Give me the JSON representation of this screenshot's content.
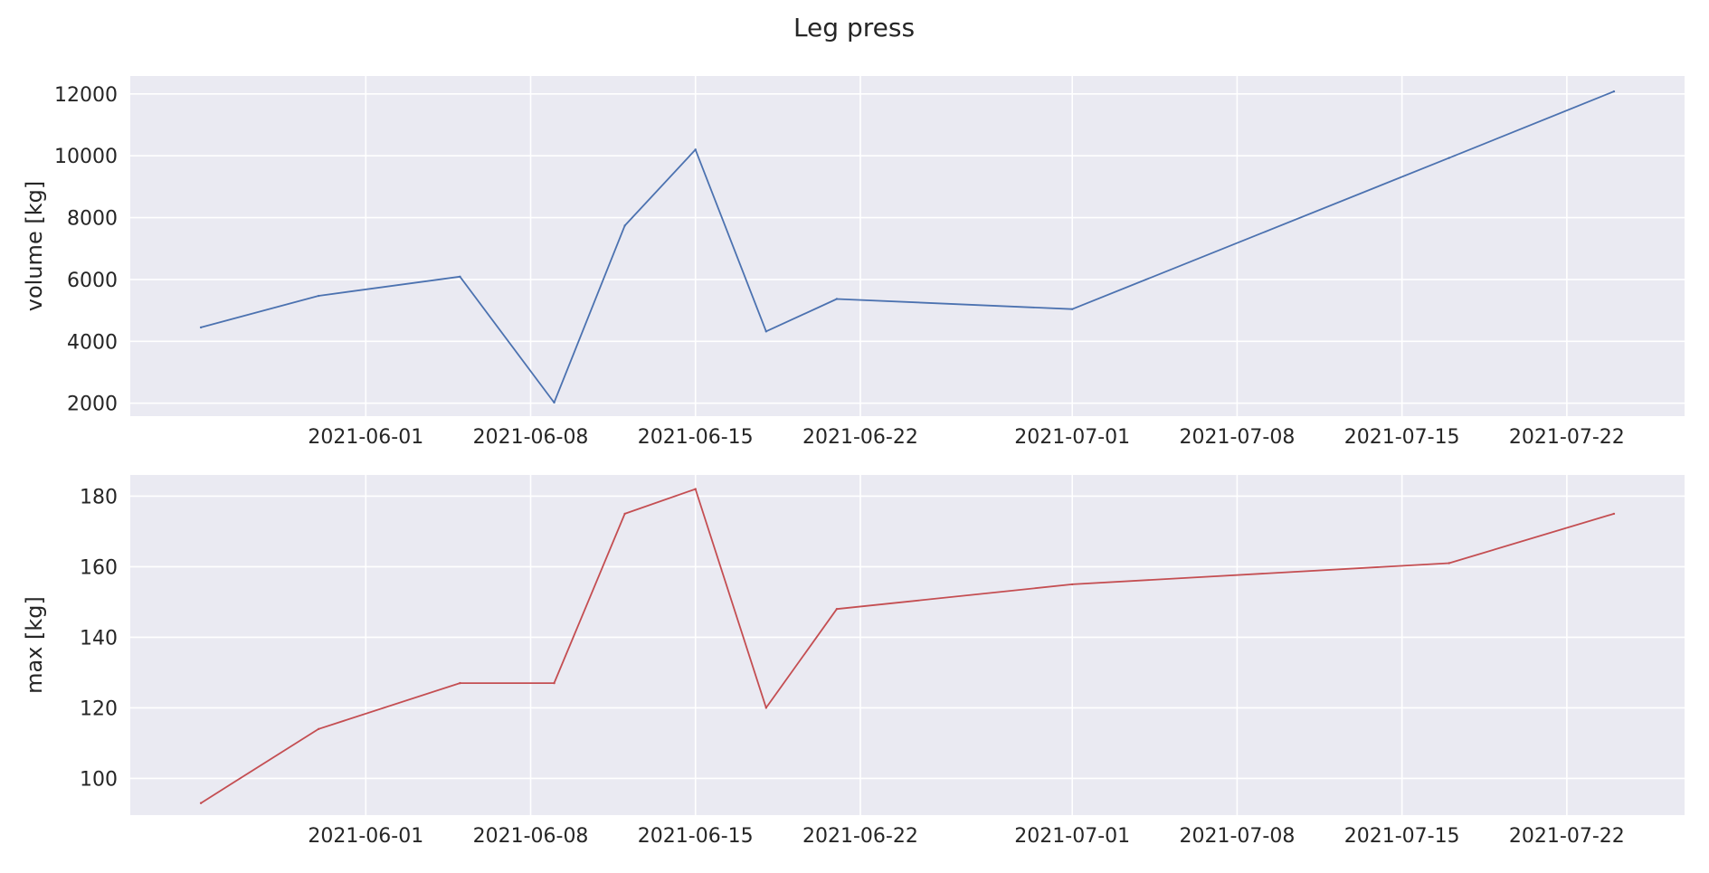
{
  "figure": {
    "title": "Leg press"
  },
  "chart_data": [
    {
      "type": "line",
      "title": "",
      "xlabel": "",
      "ylabel": "volume [kg]",
      "x": [
        "2021-05-25",
        "2021-05-30",
        "2021-06-05",
        "2021-06-09",
        "2021-06-12",
        "2021-06-15",
        "2021-06-18",
        "2021-06-21",
        "2021-07-01",
        "2021-07-17",
        "2021-07-24"
      ],
      "series": [
        {
          "values": [
            4450,
            5470,
            6090,
            2020,
            7740,
            10200,
            4320,
            5370,
            5040,
            9930,
            12080
          ],
          "color": "#4c72b0"
        }
      ],
      "xticks": [
        "2021-06-01",
        "2021-06-08",
        "2021-06-15",
        "2021-06-22",
        "2021-07-01",
        "2021-07-08",
        "2021-07-15",
        "2021-07-22"
      ],
      "yticks": [
        2000,
        4000,
        6000,
        8000,
        10000,
        12000
      ],
      "xlim": [
        "2021-05-22",
        "2021-07-27"
      ],
      "ylim": [
        1580,
        12580
      ],
      "grid": true
    },
    {
      "type": "line",
      "title": "",
      "xlabel": "",
      "ylabel": "max [kg]",
      "x": [
        "2021-05-25",
        "2021-05-30",
        "2021-06-05",
        "2021-06-09",
        "2021-06-12",
        "2021-06-15",
        "2021-06-18",
        "2021-06-21",
        "2021-07-01",
        "2021-07-17",
        "2021-07-24"
      ],
      "series": [
        {
          "values": [
            93,
            114,
            127,
            127,
            175,
            182,
            120,
            148,
            155,
            161,
            175
          ],
          "color": "#c44e52"
        }
      ],
      "xticks": [
        "2021-06-01",
        "2021-06-08",
        "2021-06-15",
        "2021-06-22",
        "2021-07-01",
        "2021-07-08",
        "2021-07-15",
        "2021-07-22"
      ],
      "yticks": [
        100,
        120,
        140,
        160,
        180
      ],
      "xlim": [
        "2021-05-22",
        "2021-07-27"
      ],
      "ylim": [
        89.6,
        186.0
      ],
      "grid": true
    }
  ]
}
